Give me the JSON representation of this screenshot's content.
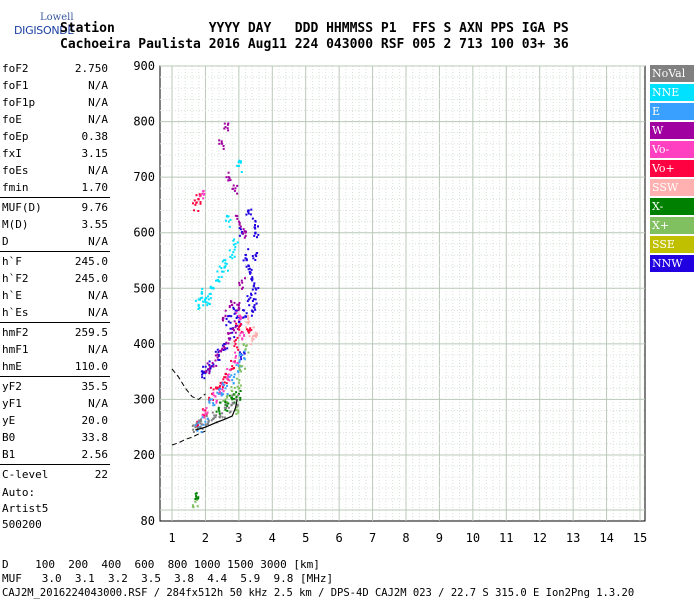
{
  "logo": {
    "line1": "Lowell",
    "line2": "DIGISONDE"
  },
  "header": {
    "row1": "Station            YYYY DAY   DDD HHMMSS P1  FFS S AXN PPS IGA PS",
    "row2": "Cachoeira Paulista 2016 Aug11 224 043000 RSF 005 2 713 100 03+ 36"
  },
  "params": [
    {
      "k": "foF2",
      "v": "2.750"
    },
    {
      "k": "foF1",
      "v": "N/A"
    },
    {
      "k": "foF1p",
      "v": "N/A"
    },
    {
      "k": "foE",
      "v": "N/A"
    },
    {
      "k": "foEp",
      "v": "0.38"
    },
    {
      "k": "fxI",
      "v": "3.15"
    },
    {
      "k": "foEs",
      "v": "N/A"
    },
    {
      "k": "fmin",
      "v": "1.70"
    },
    {
      "k": "MUF(D)",
      "v": "9.76"
    },
    {
      "k": "M(D)",
      "v": "3.55"
    },
    {
      "k": "D",
      "v": "N/A"
    },
    {
      "k": "h`F",
      "v": "245.0"
    },
    {
      "k": "h`F2",
      "v": "245.0"
    },
    {
      "k": "h`E",
      "v": "N/A"
    },
    {
      "k": "h`Es",
      "v": "N/A"
    },
    {
      "k": "hmF2",
      "v": "259.5"
    },
    {
      "k": "hmF1",
      "v": "N/A"
    },
    {
      "k": "hmE",
      "v": "110.0"
    },
    {
      "k": "yF2",
      "v": "35.5"
    },
    {
      "k": "yF1",
      "v": "N/A"
    },
    {
      "k": "yE",
      "v": "20.0"
    },
    {
      "k": "B0",
      "v": "33.8"
    },
    {
      "k": "B1",
      "v": "2.56"
    },
    {
      "k": "C-level",
      "v": "22"
    }
  ],
  "auto": {
    "l1": "Auto:",
    "l2": "Artist5",
    "l3": "500200"
  },
  "legend": [
    {
      "label": "NoVal",
      "color": "#808080"
    },
    {
      "label": "NNE",
      "color": "#00e0ff"
    },
    {
      "label": "E",
      "color": "#3aa0ff"
    },
    {
      "label": "W",
      "color": "#a000a0"
    },
    {
      "label": "Vo-",
      "color": "#ff40c0"
    },
    {
      "label": "Vo+",
      "color": "#ff0040"
    },
    {
      "label": "SSW",
      "color": "#ffb0b0"
    },
    {
      "label": "X-",
      "color": "#008000"
    },
    {
      "label": "X+",
      "color": "#80c060"
    },
    {
      "label": "SSE",
      "color": "#c0c000"
    },
    {
      "label": "NNW",
      "color": "#2000e0"
    }
  ],
  "footer": {
    "d_row": "D    100  200  400  600  800 1000 1500 3000 [km]",
    "muf_row": "MUF   3.0  3.1  3.2  3.5  3.8  4.4  5.9  9.8 [MHz]",
    "file_row": "CAJ2M_2016224043000.RSF / 284fx512h 50 kHz 2.5 km / DPS-4D CAJ2M 023 / 22.7 S 315.0 E Ion2Png 1.3.20"
  },
  "chart_data": {
    "type": "scatter",
    "xlim": [
      1,
      15
    ],
    "ylim": [
      80,
      900
    ],
    "xticks": [
      "1",
      "2",
      "3",
      "4",
      "5",
      "6",
      "7",
      "8",
      "9",
      "10",
      "11",
      "12",
      "13",
      "14",
      "15"
    ],
    "yticks": [
      "900",
      "800",
      "700",
      "600",
      "500",
      "400",
      "300",
      "200",
      "80"
    ],
    "ytick_values": [
      900,
      800,
      700,
      600,
      500,
      400,
      300,
      200,
      80
    ],
    "grid": true,
    "legend_position": "right",
    "clusters": [
      {
        "name": "NNW",
        "color": "#2000e0",
        "points": [
          [
            3.1,
            600
          ],
          [
            3.2,
            560
          ],
          [
            3.3,
            540
          ],
          [
            3.4,
            520
          ],
          [
            3.5,
            560
          ],
          [
            3.5,
            600
          ],
          [
            3.3,
            480
          ],
          [
            3.2,
            450
          ],
          [
            3.0,
            440
          ],
          [
            2.8,
            420
          ],
          [
            2.6,
            400
          ],
          [
            2.4,
            380
          ],
          [
            2.2,
            360
          ],
          [
            2.0,
            350
          ],
          [
            1.9,
            340
          ],
          [
            3.4,
            460
          ],
          [
            3.5,
            480
          ],
          [
            3.5,
            500
          ],
          [
            3.3,
            640
          ],
          [
            3.5,
            620
          ],
          [
            2.9,
            460
          ],
          [
            2.7,
            440
          ],
          [
            3.1,
            380
          ]
        ]
      },
      {
        "name": "W",
        "color": "#a000a0",
        "points": [
          [
            2.5,
            390
          ],
          [
            2.7,
            410
          ],
          [
            2.9,
            430
          ],
          [
            3.0,
            470
          ],
          [
            3.1,
            510
          ],
          [
            2.3,
            370
          ],
          [
            2.1,
            355
          ],
          [
            2.6,
            450
          ],
          [
            2.8,
            470
          ],
          [
            2.7,
            700
          ],
          [
            2.9,
            680
          ],
          [
            2.5,
            760
          ],
          [
            2.6,
            790
          ],
          [
            3.2,
            600
          ],
          [
            3.0,
            620
          ]
        ]
      },
      {
        "name": "Vo+",
        "color": "#ff0040",
        "points": [
          [
            2.2,
            310
          ],
          [
            2.4,
            320
          ],
          [
            2.6,
            340
          ],
          [
            2.8,
            360
          ],
          [
            2.9,
            400
          ],
          [
            3.0,
            430
          ],
          [
            1.8,
            260
          ],
          [
            2.0,
            280
          ],
          [
            2.5,
            330
          ],
          [
            3.3,
            420
          ],
          [
            1.7,
            650
          ],
          [
            1.8,
            660
          ]
        ]
      },
      {
        "name": "Vo-",
        "color": "#ff40c0",
        "points": [
          [
            2.3,
            305
          ],
          [
            2.5,
            318
          ],
          [
            2.7,
            345
          ],
          [
            2.9,
            375
          ],
          [
            3.1,
            410
          ],
          [
            2.0,
            275
          ],
          [
            1.9,
            670
          ],
          [
            3.0,
            450
          ]
        ]
      },
      {
        "name": "NNE",
        "color": "#00e0ff",
        "points": [
          [
            1.8,
            470
          ],
          [
            2.0,
            480
          ],
          [
            2.2,
            500
          ],
          [
            2.4,
            520
          ],
          [
            2.6,
            540
          ],
          [
            2.8,
            560
          ],
          [
            1.9,
            490
          ],
          [
            2.1,
            480
          ],
          [
            2.5,
            530
          ],
          [
            2.9,
            580
          ],
          [
            3.0,
            720
          ],
          [
            2.7,
            620
          ]
        ]
      },
      {
        "name": "E",
        "color": "#3aa0ff",
        "points": [
          [
            2.2,
            300
          ],
          [
            2.4,
            310
          ],
          [
            2.6,
            320
          ],
          [
            2.8,
            335
          ],
          [
            3.0,
            360
          ],
          [
            3.1,
            380
          ],
          [
            1.8,
            250
          ],
          [
            2.0,
            260
          ]
        ]
      },
      {
        "name": "X+",
        "color": "#80c060",
        "points": [
          [
            2.6,
            300
          ],
          [
            2.8,
            315
          ],
          [
            3.0,
            330
          ],
          [
            3.1,
            360
          ],
          [
            3.2,
            390
          ],
          [
            2.9,
            280
          ],
          [
            1.7,
            115
          ]
        ]
      },
      {
        "name": "X-",
        "color": "#008000",
        "points": [
          [
            2.4,
            285
          ],
          [
            2.6,
            290
          ],
          [
            2.8,
            300
          ],
          [
            3.0,
            310
          ],
          [
            1.7,
            120
          ]
        ]
      },
      {
        "name": "NoVal",
        "color": "#808080",
        "points": [
          [
            1.7,
            250
          ],
          [
            1.9,
            255
          ],
          [
            2.1,
            262
          ],
          [
            2.3,
            268
          ],
          [
            2.5,
            275
          ],
          [
            2.7,
            285
          ],
          [
            2.9,
            300
          ]
        ]
      },
      {
        "name": "SSW",
        "color": "#ffb0b0",
        "points": [
          [
            3.5,
            420
          ],
          [
            3.4,
            410
          ],
          [
            3.3,
            440
          ]
        ]
      }
    ],
    "profile_line": [
      [
        1.7,
        245
      ],
      [
        2.0,
        250
      ],
      [
        2.3,
        258
      ],
      [
        2.6,
        265
      ],
      [
        2.8,
        270
      ],
      [
        2.9,
        285
      ],
      [
        2.95,
        300
      ]
    ],
    "dashed_upper": [
      [
        1.0,
        355
      ],
      [
        1.2,
        340
      ],
      [
        1.4,
        320
      ],
      [
        1.6,
        305
      ],
      [
        1.8,
        300
      ],
      [
        2.0,
        310
      ]
    ],
    "dashed_lower": [
      [
        1.0,
        218
      ],
      [
        1.2,
        222
      ],
      [
        1.4,
        228
      ],
      [
        1.6,
        232
      ],
      [
        1.8,
        238
      ],
      [
        2.0,
        243
      ]
    ]
  }
}
